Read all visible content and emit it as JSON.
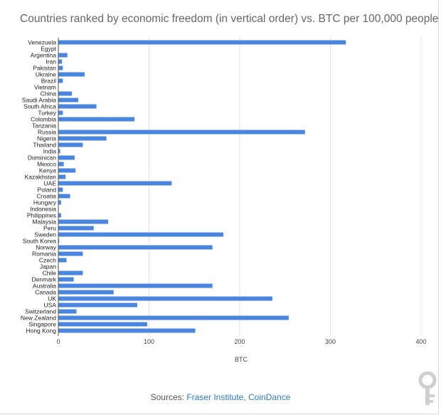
{
  "title": "Countries ranked by economic freedom (in vertical order) vs. BTC per 100,000 people",
  "sources": {
    "prefix": "Sources: ",
    "links": [
      "Fraser Institute",
      "CoinDance"
    ],
    "separator": ", "
  },
  "colors": {
    "bar": "#4a86e0",
    "grid": "#e2e2e2",
    "axis": "#555555"
  },
  "chart_data": {
    "type": "bar",
    "orientation": "horizontal",
    "title": "Countries ranked by economic freedom (in vertical order) vs. BTC per 100,000 people",
    "xlabel": "BTC",
    "ylabel": "",
    "xlim": [
      0,
      400
    ],
    "xticks": [
      0,
      100,
      200,
      300,
      400
    ],
    "grid": true,
    "categories": [
      "Venezuela",
      "Egypt",
      "Argentina",
      "Iran",
      "Pakistan",
      "Ukraine",
      "Brazil",
      "Vietnam",
      "China",
      "Saudi Arabia",
      "South Africa",
      "Turkey",
      "Colombia",
      "Tanzania",
      "Russia",
      "Nigeria",
      "Thailand",
      "India",
      "Dominican",
      "Mexico",
      "Kenya",
      "Kazakhstan",
      "UAE",
      "Poland",
      "Croatia",
      "Hungary",
      "Indonesia",
      "Philippines",
      "Malaysia",
      "Peru",
      "Sweden",
      "South Korea",
      "Norway",
      "Romania",
      "Czech",
      "Japan",
      "Chile",
      "Denmark",
      "Australia",
      "Canada",
      "UK",
      "USA",
      "Switzerland",
      "New Zealand",
      "Singapore",
      "Hong Kong"
    ],
    "values": [
      317,
      0.5,
      10,
      4,
      5,
      29,
      5,
      0.3,
      15,
      22,
      42,
      5,
      84,
      0.5,
      272,
      53,
      27,
      2,
      18,
      6,
      19,
      8,
      125,
      5,
      13,
      3,
      0.5,
      3,
      55,
      39,
      182,
      1,
      170,
      27,
      9,
      0.5,
      27,
      17,
      170,
      61,
      236,
      87,
      20,
      254,
      98,
      151
    ]
  }
}
